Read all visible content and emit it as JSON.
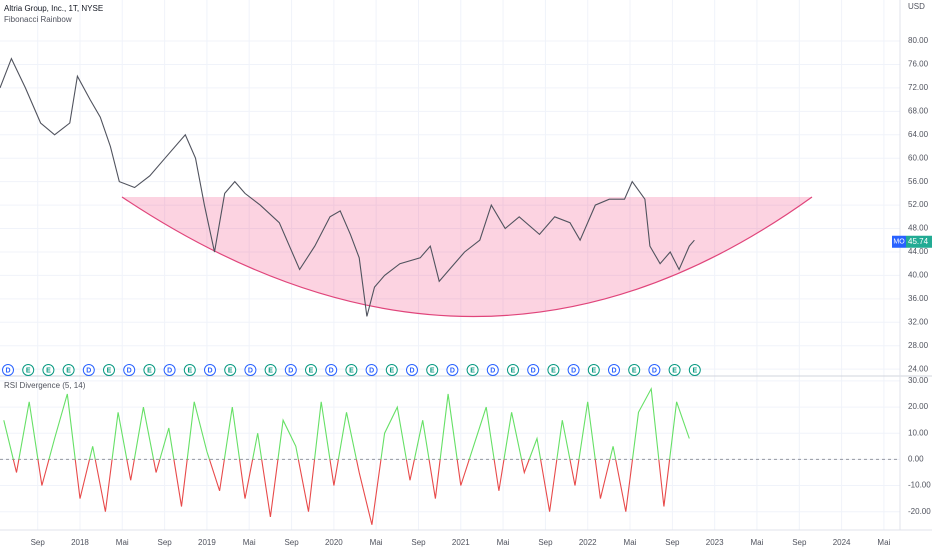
{
  "chart_data": [
    {
      "type": "line",
      "title": "Altria Group, Inc., 1T, NYSE",
      "subtitle": "Fibonacci Rainbow",
      "axis_unit": "USD",
      "x": [
        2017.37,
        2017.46,
        2017.57,
        2017.69,
        2017.8,
        2017.92,
        2017.98,
        2018.08,
        2018.16,
        2018.24,
        2018.31,
        2018.43,
        2018.55,
        2018.67,
        2018.83,
        2018.91,
        2018.98,
        2019.06,
        2019.14,
        2019.22,
        2019.3,
        2019.42,
        2019.57,
        2019.73,
        2019.85,
        2019.97,
        2020.05,
        2020.13,
        2020.2,
        2020.26,
        2020.32,
        2020.4,
        2020.52,
        2020.68,
        2020.76,
        2020.83,
        2020.91,
        2021.03,
        2021.15,
        2021.24,
        2021.35,
        2021.46,
        2021.62,
        2021.74,
        2021.86,
        2021.94,
        2022.06,
        2022.17,
        2022.29,
        2022.35,
        2022.45,
        2022.49,
        2022.57,
        2022.65,
        2022.72,
        2022.8,
        2022.84
      ],
      "series": [
        {
          "color": "#50535e",
          "values": [
            72,
            77,
            72,
            66,
            64,
            66,
            74,
            70,
            67,
            62,
            56,
            55,
            57,
            60,
            64,
            60,
            52,
            44,
            54,
            56,
            54,
            52,
            49,
            41,
            45,
            50,
            51,
            47,
            43,
            33,
            38,
            40,
            42,
            43,
            45,
            39,
            41,
            44,
            46,
            52,
            48,
            50,
            47,
            50,
            49,
            46,
            52,
            53,
            53,
            56,
            53,
            45,
            42,
            44,
            41,
            45,
            46
          ]
        }
      ],
      "last_price": {
        "symbol": "MO",
        "value": 45.74
      },
      "events": [
        "D",
        "E",
        "E",
        "E",
        "D",
        "E",
        "D",
        "E",
        "D",
        "E",
        "D",
        "E",
        "D",
        "E",
        "D",
        "E",
        "D",
        "E",
        "D",
        "E",
        "D",
        "E",
        "D",
        "E",
        "D",
        "E",
        "D",
        "E",
        "D",
        "E",
        "D",
        "E",
        "D",
        "E",
        "E"
      ],
      "xlim": [
        2017.37,
        2024.46
      ],
      "xticks": [
        {
          "value": 2017.667,
          "label": "Sep"
        },
        2018,
        {
          "value": 2018.333,
          "label": "Mai"
        },
        {
          "value": 2018.667,
          "label": "Sep"
        },
        2019,
        {
          "value": 2019.333,
          "label": "Mai"
        },
        {
          "value": 2019.667,
          "label": "Sep"
        },
        2020,
        {
          "value": 2020.333,
          "label": "Mai"
        },
        {
          "value": 2020.667,
          "label": "Sep"
        },
        2021,
        {
          "value": 2021.333,
          "label": "Mai"
        },
        {
          "value": 2021.667,
          "label": "Sep"
        },
        2022,
        {
          "value": 2022.333,
          "label": "Mai"
        },
        {
          "value": 2022.667,
          "label": "Sep"
        },
        2023,
        {
          "value": 2023.333,
          "label": "Mai"
        },
        {
          "value": 2023.667,
          "label": "Sep"
        },
        2024,
        {
          "value": 2024.333,
          "label": "Mai"
        }
      ],
      "ylim": [
        23,
        87
      ],
      "yticks": [
        {
          "value": 80,
          "label": "80.00"
        },
        {
          "value": 76,
          "label": "76.00"
        },
        {
          "value": 72,
          "label": "72.00"
        },
        {
          "value": 68,
          "label": "68.00"
        },
        {
          "value": 64,
          "label": "64.00"
        },
        {
          "value": 60,
          "label": "60.00"
        },
        {
          "value": 56,
          "label": "56.00"
        },
        {
          "value": 52,
          "label": "52.00"
        },
        {
          "value": 48,
          "label": "48.00"
        },
        {
          "value": 44,
          "label": "44.00"
        },
        {
          "value": 40,
          "label": "40.00"
        },
        {
          "value": 36,
          "label": "36.00"
        },
        {
          "value": 32,
          "label": "32.00"
        },
        {
          "value": 28,
          "label": "28.00"
        },
        {
          "value": 24,
          "label": "24.00"
        }
      ],
      "grid": true
    },
    {
      "type": "line",
      "title": "RSI Divergence (5, 14)",
      "x": [
        2017.4,
        2017.5,
        2017.6,
        2017.7,
        2017.8,
        2017.9,
        2018.0,
        2018.1,
        2018.2,
        2018.3,
        2018.4,
        2018.5,
        2018.6,
        2018.7,
        2018.8,
        2018.9,
        2019.0,
        2019.1,
        2019.2,
        2019.3,
        2019.4,
        2019.5,
        2019.6,
        2019.7,
        2019.8,
        2019.9,
        2020.0,
        2020.1,
        2020.2,
        2020.3,
        2020.4,
        2020.5,
        2020.6,
        2020.7,
        2020.8,
        2020.9,
        2021.0,
        2021.1,
        2021.2,
        2021.3,
        2021.4,
        2021.5,
        2021.6,
        2021.7,
        2021.8,
        2021.9,
        2022.0,
        2022.1,
        2022.2,
        2022.3,
        2022.4,
        2022.5,
        2022.6,
        2022.7,
        2022.8
      ],
      "series": [
        {
          "color": "#66e066",
          "down_color": "#e84a4a",
          "values": [
            15,
            -5,
            22,
            -10,
            8,
            25,
            -15,
            5,
            -20,
            18,
            -8,
            20,
            -5,
            12,
            -18,
            22,
            3,
            -12,
            20,
            -15,
            10,
            -22,
            15,
            5,
            -20,
            22,
            -10,
            18,
            -5,
            -25,
            10,
            20,
            -8,
            15,
            -15,
            25,
            -10,
            5,
            20,
            -12,
            18,
            -5,
            8,
            -20,
            15,
            -10,
            22,
            -15,
            5,
            -20,
            18,
            27,
            -18,
            22,
            8
          ]
        }
      ],
      "xlim": [
        2017.37,
        2024.46
      ],
      "ylim": [
        -27,
        31.5
      ],
      "yticks": [
        {
          "value": 30,
          "label": "30.00"
        },
        {
          "value": 20,
          "label": "20.00"
        },
        {
          "value": 10,
          "label": "10.00"
        },
        {
          "value": 0,
          "label": "0.00"
        },
        {
          "value": -10,
          "label": "-10.00"
        },
        {
          "value": -20,
          "label": "-20.00"
        }
      ],
      "grid": true
    }
  ]
}
